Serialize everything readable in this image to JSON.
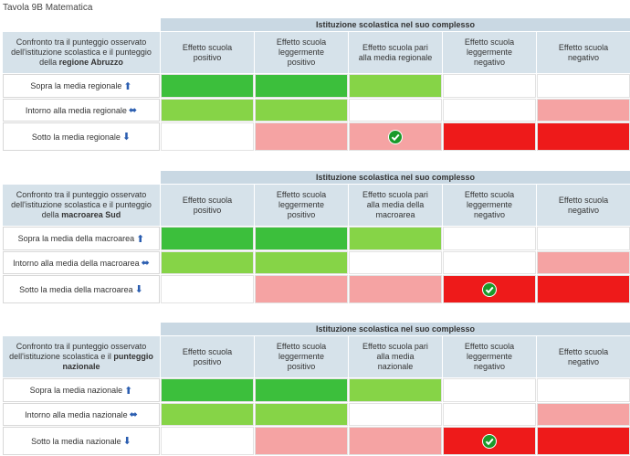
{
  "title": "Tavola 9B Matematica",
  "tables": [
    {
      "header": "Istituzione scolastica nel suo complesso",
      "description": "Confronto tra il punteggio osservato dell'istituzione scolastica e il punteggio della",
      "description_bold": "regione Abruzzo",
      "columns": [
        "Effetto scuola positivo",
        "Effetto scuola leggermente positivo",
        "Effetto scuola pari alla media regionale",
        "Effetto scuola leggermente negativo",
        "Effetto scuola negativo"
      ],
      "rows": [
        "Sopra la media regionale",
        "Intorno alla media regionale",
        "Sotto la media regionale"
      ]
    },
    {
      "header": "Istituzione scolastica nel suo complesso",
      "description": "Confronto tra il punteggio osservato dell'istituzione scolastica e il punteggio della",
      "description_bold": "macroarea Sud",
      "columns": [
        "Effetto scuola positivo",
        "Effetto scuola leggermente positivo",
        "Effetto scuola pari alla media della macroarea",
        "Effetto scuola leggermente negativo",
        "Effetto scuola negativo"
      ],
      "rows": [
        "Sopra la media della macroarea",
        "Intorno alla media della macroarea",
        "Sotto la media della macroarea"
      ]
    },
    {
      "header": "Istituzione scolastica nel suo complesso",
      "description": "Confronto tra il punteggio osservato dell'istituzione scolastica e il",
      "description_bold": "punteggio nazionale",
      "columns": [
        "Effetto scuola positivo",
        "Effetto scuola leggermente positivo",
        "Effetto scuola pari alla media nazionale",
        "Effetto scuola leggermente negativo",
        "Effetto scuola negativo"
      ],
      "rows": [
        "Sopra la media nazionale",
        "Intorno alla media nazionale",
        "Sotto la media nazionale"
      ]
    }
  ]
}
